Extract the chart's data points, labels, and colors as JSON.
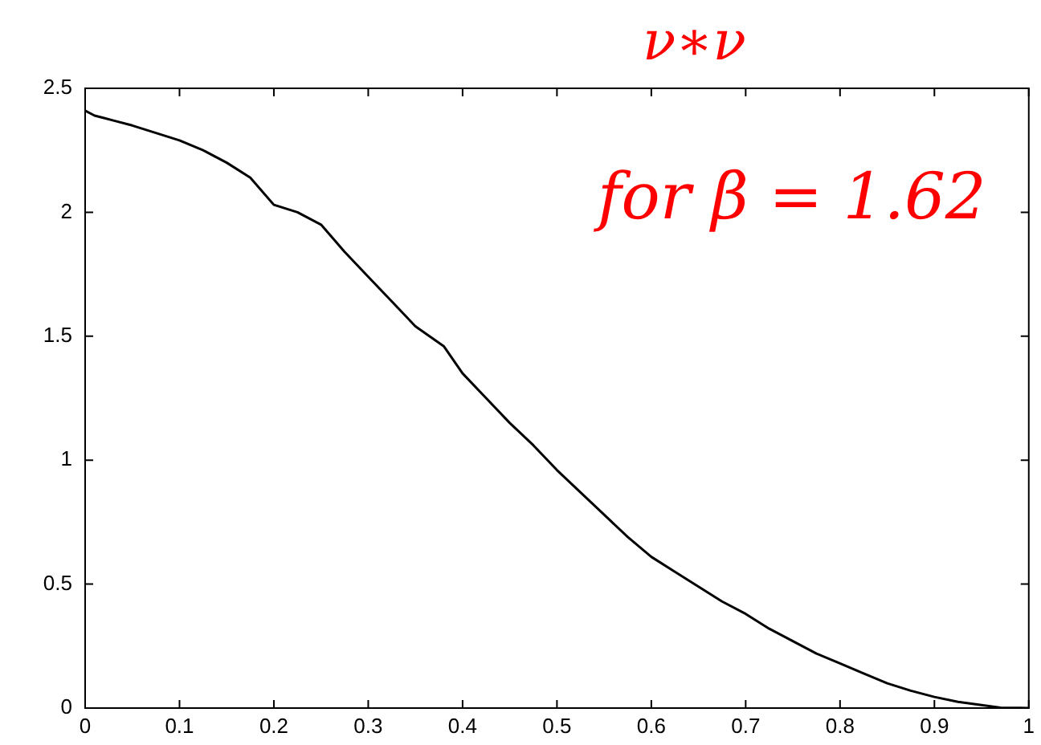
{
  "chart_data": {
    "type": "line",
    "annotations": [
      "ν∗ν",
      "for β = 1.62"
    ],
    "x": [
      0,
      0.01,
      0.02,
      0.03,
      0.05,
      0.075,
      0.1,
      0.125,
      0.15,
      0.175,
      0.2,
      0.225,
      0.25,
      0.275,
      0.3,
      0.325,
      0.35,
      0.38,
      0.4,
      0.425,
      0.45,
      0.475,
      0.5,
      0.525,
      0.55,
      0.575,
      0.6,
      0.625,
      0.65,
      0.675,
      0.7,
      0.725,
      0.75,
      0.775,
      0.8,
      0.825,
      0.85,
      0.875,
      0.9,
      0.925,
      0.95,
      0.97,
      1
    ],
    "series": [
      {
        "color": "#000000",
        "values": [
          2.41,
          2.39,
          2.38,
          2.37,
          2.35,
          2.32,
          2.29,
          2.25,
          2.2,
          2.14,
          2.03,
          2.0,
          1.95,
          1.84,
          1.74,
          1.64,
          1.54,
          1.46,
          1.35,
          1.25,
          1.15,
          1.06,
          0.96,
          0.87,
          0.78,
          0.69,
          0.61,
          0.55,
          0.49,
          0.43,
          0.38,
          0.32,
          0.27,
          0.22,
          0.18,
          0.14,
          0.1,
          0.07,
          0.045,
          0.025,
          0.012,
          0.002,
          0
        ]
      }
    ],
    "xlim": [
      0,
      1
    ],
    "xticks": [
      0,
      0.1,
      0.2,
      0.3,
      0.4,
      0.5,
      0.6,
      0.7,
      0.8,
      0.9,
      1
    ],
    "ylim": [
      0,
      2.5
    ],
    "yticks": [
      0,
      0.5,
      1,
      1.5,
      2,
      2.5
    ],
    "grid": false,
    "legend": false,
    "marker": "none",
    "line_style": "solid"
  }
}
